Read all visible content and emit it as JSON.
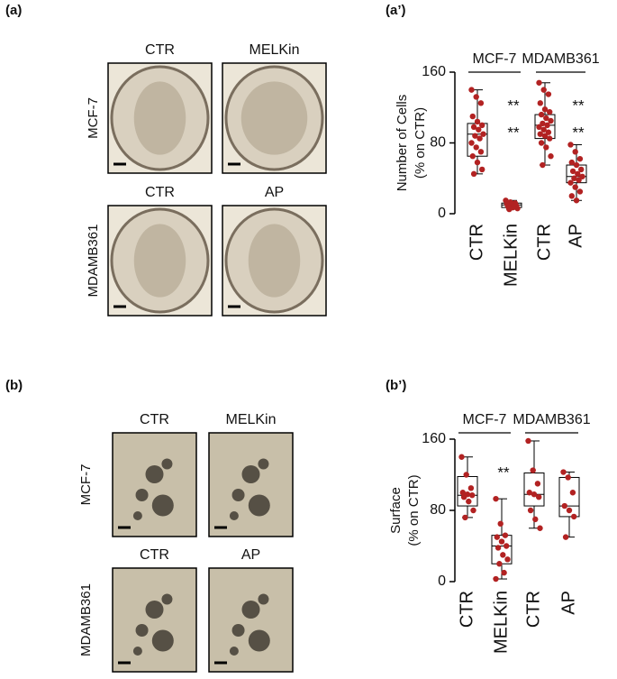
{
  "figure": {
    "a": {
      "label": "(a)",
      "rows": [
        {
          "name": "MCF-7",
          "images": [
            "CTR",
            "MELKin"
          ]
        },
        {
          "name": "MDAMB361",
          "images": [
            "CTR",
            "AP"
          ]
        }
      ]
    },
    "b": {
      "label": "(b)",
      "rows": [
        {
          "name": "MCF-7",
          "images": [
            "CTR",
            "MELKin"
          ]
        },
        {
          "name": "MDAMB361",
          "images": [
            "CTR",
            "AP"
          ]
        }
      ]
    }
  },
  "chart_data": [
    {
      "type": "box",
      "label": "(a’)",
      "ylabel": [
        "Number of Cells",
        "(% on CTR)"
      ],
      "groups": [
        "MCF-7",
        "MDAMB361"
      ],
      "categories": [
        "CTR",
        "MELKin",
        "CTR",
        "AP"
      ],
      "color": "#b22222",
      "ylim": [
        0,
        160
      ],
      "yticks": [
        0,
        80,
        160
      ],
      "significance": [
        null,
        [
          "**",
          "**"
        ],
        null,
        [
          "**",
          "**"
        ]
      ],
      "boxes": [
        {
          "whislo": 45,
          "q1": 65,
          "med": 90,
          "q3": 102,
          "whishi": 140,
          "points": [
            140,
            132,
            125,
            110,
            104,
            100,
            98,
            95,
            90,
            88,
            85,
            80,
            75,
            70,
            65,
            58,
            50,
            45
          ]
        },
        {
          "whislo": 5,
          "q1": 7,
          "med": 10,
          "q3": 12,
          "whishi": 15,
          "points": [
            15,
            13,
            12,
            11,
            10,
            9,
            8,
            7,
            6,
            5
          ]
        },
        {
          "whislo": 55,
          "q1": 85,
          "med": 100,
          "q3": 112,
          "whishi": 148,
          "points": [
            148,
            140,
            135,
            125,
            118,
            115,
            112,
            108,
            105,
            102,
            100,
            98,
            95,
            92,
            90,
            88,
            85,
            80,
            75,
            65,
            55
          ]
        },
        {
          "whislo": 15,
          "q1": 35,
          "med": 42,
          "q3": 55,
          "whishi": 78,
          "points": [
            78,
            70,
            62,
            58,
            55,
            50,
            48,
            45,
            42,
            40,
            38,
            35,
            30,
            25,
            20,
            15
          ]
        }
      ]
    },
    {
      "type": "box",
      "label": "(b’)",
      "ylabel": [
        "Surface",
        "(% on CTR)"
      ],
      "groups": [
        "MCF-7",
        "MDAMB361"
      ],
      "categories": [
        "CTR",
        "MELKin",
        "CTR",
        "AP"
      ],
      "color": "#b22222",
      "ylim": [
        0,
        160
      ],
      "yticks": [
        0,
        80,
        160
      ],
      "significance": [
        null,
        [
          "**"
        ],
        null,
        null
      ],
      "boxes": [
        {
          "whislo": 72,
          "q1": 85,
          "med": 97,
          "q3": 118,
          "whishi": 140,
          "points": [
            140,
            120,
            105,
            100,
            98,
            97,
            95,
            90,
            80,
            72
          ]
        },
        {
          "whislo": 3,
          "q1": 20,
          "med": 40,
          "q3": 52,
          "whishi": 93,
          "points": [
            93,
            65,
            52,
            50,
            45,
            40,
            38,
            30,
            25,
            20,
            10,
            3
          ]
        },
        {
          "whislo": 60,
          "q1": 85,
          "med": 98,
          "q3": 122,
          "whishi": 158,
          "points": [
            158,
            125,
            110,
            100,
            98,
            95,
            80,
            70,
            60
          ]
        },
        {
          "whislo": 50,
          "q1": 73,
          "med": 85,
          "q3": 117,
          "whishi": 123,
          "points": [
            123,
            117,
            100,
            85,
            80,
            73,
            50
          ]
        }
      ]
    }
  ]
}
